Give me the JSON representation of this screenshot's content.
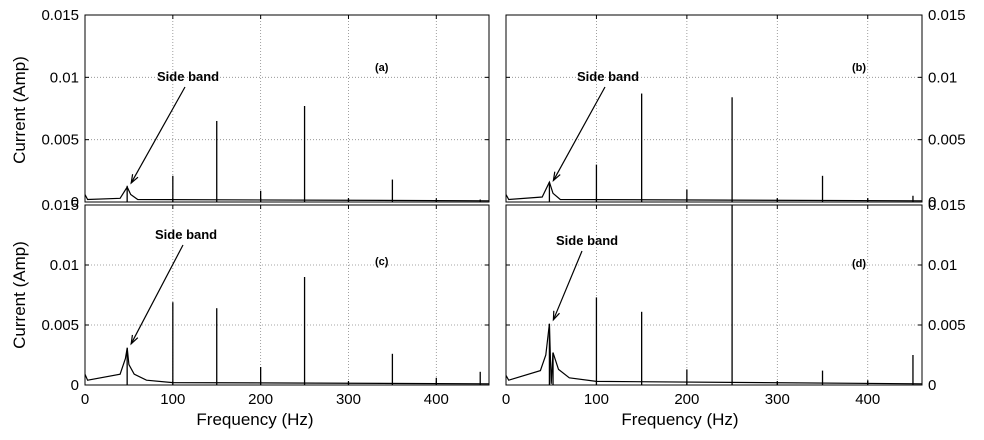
{
  "figure": {
    "ylabel_left": "Current (Amp)",
    "xlabel": "Frequency (Hz)"
  },
  "chart_data": [
    {
      "type": "line",
      "panel": "(a)",
      "xlabel": "",
      "ylabel": "Current (Amp)",
      "xlim": [
        0,
        460
      ],
      "ylim": [
        0,
        0.015
      ],
      "x_ticks": [
        "0",
        "100",
        "200",
        "300",
        "400"
      ],
      "y_ticks": [
        "0",
        "0.005",
        "0.01",
        "0.015"
      ],
      "y_axis_side": "left",
      "grid": true,
      "annotation": {
        "text": "Side band",
        "x": 48,
        "y": 0.0012
      },
      "baseline": [
        [
          0,
          0.0006
        ],
        [
          3,
          0.0002
        ],
        [
          40,
          0.0003
        ],
        [
          48,
          0.0012
        ],
        [
          52,
          0.0006
        ],
        [
          60,
          0.0002
        ],
        [
          460,
          0.0001
        ]
      ],
      "peaks": [
        {
          "x": 48,
          "y": 0.0013
        },
        {
          "x": 100,
          "y": 0.0021
        },
        {
          "x": 150,
          "y": 0.0065
        },
        {
          "x": 200,
          "y": 0.0009
        },
        {
          "x": 250,
          "y": 0.0077
        },
        {
          "x": 300,
          "y": 0.0003
        },
        {
          "x": 350,
          "y": 0.0018
        },
        {
          "x": 400,
          "y": 0.0002
        },
        {
          "x": 450,
          "y": 0.0002
        }
      ]
    },
    {
      "type": "line",
      "panel": "(b)",
      "xlabel": "",
      "ylabel": "",
      "xlim": [
        0,
        460
      ],
      "ylim": [
        0,
        0.015
      ],
      "x_ticks": [
        "0",
        "100",
        "200",
        "300",
        "400"
      ],
      "y_ticks": [
        "0",
        "0.005",
        "0.01",
        "0.015"
      ],
      "y_axis_side": "right",
      "grid": true,
      "annotation": {
        "text": "Side band",
        "x": 48,
        "y": 0.0014
      },
      "baseline": [
        [
          0,
          0.0006
        ],
        [
          3,
          0.0002
        ],
        [
          40,
          0.0004
        ],
        [
          48,
          0.0016
        ],
        [
          52,
          0.0007
        ],
        [
          60,
          0.0002
        ],
        [
          460,
          0.0001
        ]
      ],
      "peaks": [
        {
          "x": 48,
          "y": 0.0016
        },
        {
          "x": 100,
          "y": 0.003
        },
        {
          "x": 150,
          "y": 0.0087
        },
        {
          "x": 200,
          "y": 0.001
        },
        {
          "x": 250,
          "y": 0.0084
        },
        {
          "x": 300,
          "y": 0.0003
        },
        {
          "x": 350,
          "y": 0.0021
        },
        {
          "x": 400,
          "y": 0.0003
        },
        {
          "x": 450,
          "y": 0.0005
        }
      ]
    },
    {
      "type": "line",
      "panel": "(c)",
      "xlabel": "Frequency (Hz)",
      "ylabel": "Current (Amp)",
      "xlim": [
        0,
        460
      ],
      "ylim": [
        0,
        0.015
      ],
      "x_ticks": [
        "0",
        "100",
        "200",
        "300",
        "400"
      ],
      "y_ticks": [
        "0",
        "0.005",
        "0.01",
        "0.015"
      ],
      "y_axis_side": "left",
      "grid": true,
      "annotation": {
        "text": "Side band",
        "x": 48,
        "y": 0.0031
      },
      "baseline": [
        [
          0,
          0.0009
        ],
        [
          3,
          0.0004
        ],
        [
          40,
          0.0009
        ],
        [
          46,
          0.0022
        ],
        [
          48,
          0.0031
        ],
        [
          50,
          0.0017
        ],
        [
          56,
          0.0009
        ],
        [
          70,
          0.0004
        ],
        [
          100,
          0.0002
        ],
        [
          460,
          0.0001
        ]
      ],
      "peaks": [
        {
          "x": 48,
          "y": 0.0031
        },
        {
          "x": 100,
          "y": 0.0069
        },
        {
          "x": 150,
          "y": 0.0064
        },
        {
          "x": 200,
          "y": 0.0015
        },
        {
          "x": 250,
          "y": 0.009
        },
        {
          "x": 300,
          "y": 0.0003
        },
        {
          "x": 350,
          "y": 0.0026
        },
        {
          "x": 400,
          "y": 0.0006
        },
        {
          "x": 450,
          "y": 0.0011
        }
      ]
    },
    {
      "type": "line",
      "panel": "(d)",
      "xlabel": "Frequency (Hz)",
      "ylabel": "",
      "xlim": [
        0,
        460
      ],
      "ylim": [
        0,
        0.015
      ],
      "x_ticks": [
        "0",
        "100",
        "200",
        "300",
        "400"
      ],
      "y_ticks": [
        "0",
        "0.005",
        "0.01",
        "0.015"
      ],
      "y_axis_side": "right",
      "grid": true,
      "annotation": {
        "text": "Side band",
        "x": 48,
        "y": 0.0051
      },
      "baseline": [
        [
          0,
          0.0008
        ],
        [
          3,
          0.0004
        ],
        [
          38,
          0.0012
        ],
        [
          44,
          0.0025
        ],
        [
          48,
          0.0051
        ],
        [
          50,
          0.0001
        ],
        [
          52,
          0.0027
        ],
        [
          58,
          0.0013
        ],
        [
          70,
          0.0006
        ],
        [
          100,
          0.0003
        ],
        [
          460,
          0.0001
        ]
      ],
      "peaks": [
        {
          "x": 48,
          "y": 0.0051
        },
        {
          "x": 52,
          "y": 0.0027
        },
        {
          "x": 100,
          "y": 0.0073
        },
        {
          "x": 150,
          "y": 0.0061
        },
        {
          "x": 200,
          "y": 0.0013
        },
        {
          "x": 250,
          "y": 0.0152
        },
        {
          "x": 300,
          "y": 0.0003
        },
        {
          "x": 350,
          "y": 0.0012
        },
        {
          "x": 400,
          "y": 0.0004
        },
        {
          "x": 450,
          "y": 0.0025
        }
      ]
    }
  ]
}
